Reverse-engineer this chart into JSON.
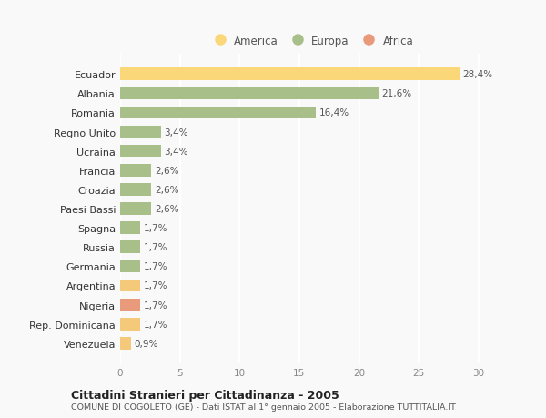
{
  "categories": [
    "Ecuador",
    "Albania",
    "Romania",
    "Regno Unito",
    "Ucraina",
    "Francia",
    "Croazia",
    "Paesi Bassi",
    "Spagna",
    "Russia",
    "Germania",
    "Argentina",
    "Nigeria",
    "Rep. Dominicana",
    "Venezuela"
  ],
  "values": [
    28.4,
    21.6,
    16.4,
    3.4,
    3.4,
    2.6,
    2.6,
    2.6,
    1.7,
    1.7,
    1.7,
    1.7,
    1.7,
    1.7,
    0.9
  ],
  "colors": [
    "#fad87a",
    "#a8bf8a",
    "#a8bf8a",
    "#a8bf8a",
    "#a8bf8a",
    "#a8bf8a",
    "#a8bf8a",
    "#a8bf8a",
    "#a8bf8a",
    "#a8bf8a",
    "#a8bf8a",
    "#f5c97a",
    "#e89a7a",
    "#f5c97a",
    "#f5c97a"
  ],
  "labels": [
    "28,4%",
    "21,6%",
    "16,4%",
    "3,4%",
    "3,4%",
    "2,6%",
    "2,6%",
    "2,6%",
    "1,7%",
    "1,7%",
    "1,7%",
    "1,7%",
    "1,7%",
    "1,7%",
    "0,9%"
  ],
  "legend": [
    {
      "label": "America",
      "color": "#fad87a"
    },
    {
      "label": "Europa",
      "color": "#a8bf8a"
    },
    {
      "label": "Africa",
      "color": "#e89a7a"
    }
  ],
  "xlim": [
    0,
    32
  ],
  "xticks": [
    0,
    5,
    10,
    15,
    20,
    25,
    30
  ],
  "title": "Cittadini Stranieri per Cittadinanza - 2005",
  "subtitle": "COMUNE DI COGOLETO (GE) - Dati ISTAT al 1° gennaio 2005 - Elaborazione TUTTITALIA.IT",
  "background_color": "#f9f9f9",
  "grid_color": "#ffffff",
  "bar_height": 0.65
}
